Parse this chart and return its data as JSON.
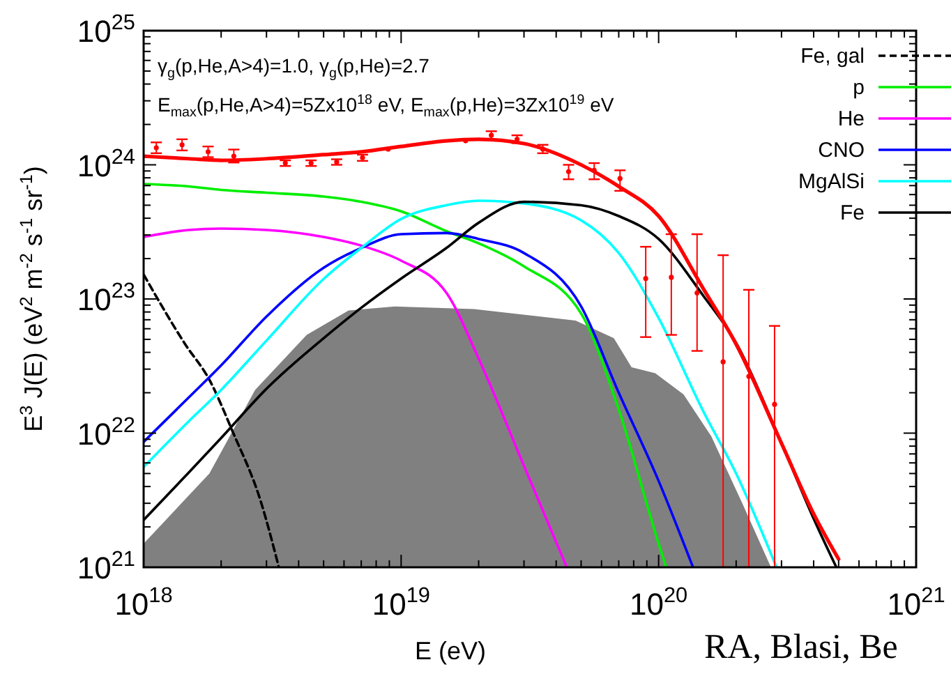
{
  "chart_data": {
    "type": "line",
    "xlabel": "E (eV)",
    "ylabel": "E$^{3}$ J(E) (eV$^{2}$ m$^{-2}$ s$^{-1}$ sr$^{-1}$)",
    "log": "xy",
    "legend": "top right",
    "xlim": [
      1e+18,
      1e+21
    ],
    "ylim": [
      1e+21,
      1e+25
    ],
    "xticks": [
      {
        "value": 1e+18,
        "label": "10$^{18}$"
      },
      {
        "value": 2e+18,
        "label": null
      },
      {
        "value": 3e+18,
        "label": null
      },
      {
        "value": 4e+18,
        "label": null
      },
      {
        "value": 5e+18,
        "label": null
      },
      {
        "value": 6e+18,
        "label": null
      },
      {
        "value": 7e+18,
        "label": null
      },
      {
        "value": 8e+18,
        "label": null
      },
      {
        "value": 9e+18,
        "label": null
      },
      {
        "value": 1e+19,
        "label": "10$^{19}$"
      },
      {
        "value": 2e+19,
        "label": null
      },
      {
        "value": 3e+19,
        "label": null
      },
      {
        "value": 4e+19,
        "label": null
      },
      {
        "value": 5e+19,
        "label": null
      },
      {
        "value": 6e+19,
        "label": null
      },
      {
        "value": 7e+19,
        "label": null
      },
      {
        "value": 8e+19,
        "label": null
      },
      {
        "value": 9e+19,
        "label": null
      },
      {
        "value": 1e+20,
        "label": "10$^{20}$"
      },
      {
        "value": 2e+20,
        "label": null
      },
      {
        "value": 3e+20,
        "label": null
      },
      {
        "value": 4e+20,
        "label": null
      },
      {
        "value": 5e+20,
        "label": null
      },
      {
        "value": 6e+20,
        "label": null
      },
      {
        "value": 7e+20,
        "label": null
      },
      {
        "value": 8e+20,
        "label": null
      },
      {
        "value": 9e+20,
        "label": null
      },
      {
        "value": 1e+21,
        "label": "10$^{21}$"
      }
    ],
    "yticks": [
      {
        "value": 1e+21,
        "label": "10$^{21}$"
      },
      {
        "value": 2e+21,
        "label": null
      },
      {
        "value": 3e+21,
        "label": null
      },
      {
        "value": 4e+21,
        "label": null
      },
      {
        "value": 5e+21,
        "label": null
      },
      {
        "value": 6e+21,
        "label": null
      },
      {
        "value": 7e+21,
        "label": null
      },
      {
        "value": 8e+21,
        "label": null
      },
      {
        "value": 9e+21,
        "label": null
      },
      {
        "value": 1e+22,
        "label": "10$^{22}$"
      },
      {
        "value": 2e+22,
        "label": null
      },
      {
        "value": 3e+22,
        "label": null
      },
      {
        "value": 4e+22,
        "label": null
      },
      {
        "value": 5e+22,
        "label": null
      },
      {
        "value": 6e+22,
        "label": null
      },
      {
        "value": 7e+22,
        "label": null
      },
      {
        "value": 8e+22,
        "label": null
      },
      {
        "value": 9e+22,
        "label": null
      },
      {
        "value": 1e+23,
        "label": "10$^{23}$"
      },
      {
        "value": 2e+23,
        "label": null
      },
      {
        "value": 3e+23,
        "label": null
      },
      {
        "value": 4e+23,
        "label": null
      },
      {
        "value": 5e+23,
        "label": null
      },
      {
        "value": 6e+23,
        "label": null
      },
      {
        "value": 7e+23,
        "label": null
      },
      {
        "value": 8e+23,
        "label": null
      },
      {
        "value": 9e+23,
        "label": null
      },
      {
        "value": 1e+24,
        "label": "10$^{24}$"
      },
      {
        "value": 2e+24,
        "label": null
      },
      {
        "value": 3e+24,
        "label": null
      },
      {
        "value": 4e+24,
        "label": null
      },
      {
        "value": 5e+24,
        "label": null
      },
      {
        "value": 6e+24,
        "label": null
      },
      {
        "value": 7e+24,
        "label": null
      },
      {
        "value": 8e+24,
        "label": null
      },
      {
        "value": 9e+24,
        "label": null
      },
      {
        "value": 1e+25,
        "label": "10$^{25}$"
      }
    ],
    "annotations": [
      "γ$_{g}$(p,He,A>4)=1.0, γ$_{g}$(p,He)=2.7",
      "E$_{max}$(p,He,A>4)=5Zx10$^{18}$ eV, E$_{max}$(p,He)=3Zx10$^{19}$ eV",
      "RA, Blasi, Be"
    ],
    "series": [
      {
        "type": "area",
        "color": "#808080",
        "x": [
          1e+18,
          1.8e+18,
          2.71e+18,
          4.3e+18,
          6.25e+18,
          9.45e+18,
          1.92e+19,
          4.76e+19,
          6.7e+19,
          7.85e+19,
          9.7e+19,
          1.25e+20,
          1.6e+20,
          2.13e+20,
          2.73e+20
        ],
        "values": [
          1.5e+21,
          5e+21,
          2.1e+22,
          5.4e+22,
          8.2e+22,
          8.8e+22,
          8.4e+22,
          6.9e+22,
          5.1e+22,
          3.1e+22,
          2.8e+22,
          1.94e+22,
          9.5e+21,
          2.9e+21,
          1e+21
        ]
      },
      {
        "name": "Fe, gal",
        "color": "#000000",
        "line_style": "dashed",
        "x": [
          1e+18,
          1.45e+18,
          1.8e+18,
          2.22e+18,
          2.85e+18,
          3.35e+18
        ],
        "values": [
          1.52e+23,
          4.6e+22,
          2.5e+22,
          1.02e+22,
          3.1e+21,
          1e+21
        ]
      },
      {
        "name": "p",
        "color": "#00ee00",
        "x": [
          1e+18,
          1.5e+18,
          2e+18,
          3e+18,
          5e+18,
          7e+18,
          1e+19,
          1.5e+19,
          2e+19,
          3e+19,
          5e+19,
          7e+19,
          1e+20,
          1.07e+20
        ],
        "values": [
          7.2e+23,
          6.9e+23,
          6.5e+23,
          6.2e+23,
          5.8e+23,
          5.3e+23,
          4.5e+23,
          3.2e+23,
          2.6e+23,
          1.75e+23,
          7.8e+22,
          1.5e+22,
          1.5e+21,
          1e+21
        ]
      },
      {
        "name": "He",
        "color": "#ff00ff",
        "x": [
          1e+18,
          1.5e+18,
          2e+18,
          3e+18,
          5e+18,
          7e+18,
          1e+19,
          1.5e+19,
          2e+19,
          3e+19,
          4.4e+19
        ],
        "values": [
          2.9e+23,
          3.27e+23,
          3.35e+23,
          3.27e+23,
          2.9e+23,
          2.5e+23,
          1.93e+23,
          1.11e+23,
          3.6e+22,
          5.7e+21,
          1e+21
        ]
      },
      {
        "name": "CNO",
        "color": "#0000ff",
        "x": [
          1e+18,
          1.5e+18,
          2e+18,
          3e+18,
          5e+18,
          7e+18,
          1e+19,
          1.5e+19,
          2e+19,
          3e+19,
          5e+19,
          7e+19,
          1e+20,
          1.36e+20
        ],
        "values": [
          8.6e+21,
          1.85e+22,
          3.2e+22,
          7.4e+22,
          1.71e+23,
          2.4e+23,
          3.04e+23,
          3.1e+23,
          2.8e+23,
          2.2e+23,
          8.8e+22,
          2e+22,
          4.4e+21,
          1e+21
        ]
      },
      {
        "name": "MgAlSi",
        "color": "#00ffff",
        "x": [
          1e+18,
          1.5e+18,
          2e+18,
          3e+18,
          5e+18,
          7e+18,
          1e+19,
          1.5e+19,
          2e+19,
          3e+19,
          5e+19,
          7e+19,
          1e+20,
          1.5e+20,
          2e+20,
          2.87e+20
        ],
        "values": [
          5.6e+21,
          1.23e+22,
          2.1e+22,
          4.9e+22,
          1.41e+23,
          2.4e+23,
          3.95e+23,
          5e+23,
          5.4e+23,
          5.15e+23,
          3.86e+23,
          2.2e+23,
          7.2e+22,
          1.42e+22,
          5e+21,
          1e+21
        ]
      },
      {
        "name": "Fe",
        "color": "#000000",
        "x": [
          1e+18,
          1.5e+18,
          2e+18,
          3e+18,
          5e+18,
          7e+18,
          1e+19,
          1.5e+19,
          2e+19,
          3e+19,
          5e+19,
          7e+19,
          1e+20,
          1.5e+20,
          2e+20,
          3e+20,
          4e+20,
          4.9e+20
        ],
        "values": [
          2.25e+21,
          5.1e+21,
          9.2e+21,
          2.14e+22,
          5.1e+22,
          8.6e+22,
          1.42e+23,
          2.4e+23,
          3.7e+23,
          5.3e+23,
          5e+23,
          4.15e+23,
          2.8e+23,
          1.04e+23,
          4.7e+22,
          8.4e+21,
          2.3e+21,
          1e+21
        ]
      },
      {
        "color": "#ff0000",
        "x": [
          1e+18,
          1.5e+18,
          2e+18,
          3e+18,
          5e+18,
          7e+18,
          1e+19,
          1.5e+19,
          2e+19,
          3e+19,
          5e+19,
          7e+19,
          1e+20,
          1.5e+20,
          2e+20,
          3e+20,
          4e+20,
          5e+20
        ],
        "values": [
          1.16e+24,
          1.11e+24,
          1.08e+24,
          1.11e+24,
          1.19e+24,
          1.25e+24,
          1.37e+24,
          1.51e+24,
          1.55e+24,
          1.44e+24,
          1e+24,
          6.9e+23,
          4.15e+23,
          1.17e+23,
          4.6e+22,
          8.4e+21,
          2.5e+21,
          1.15e+21
        ]
      },
      {
        "type": "scatter",
        "marker": "circle",
        "color": "#ff0000",
        "x": [
          1.12e+18,
          1.41e+18,
          1.78e+18,
          2.24e+18,
          3.55e+18,
          4.47e+18,
          5.62e+18,
          7.08e+18,
          8.91e+18,
          1.78e+19,
          2.24e+19,
          2.82e+19,
          3.55e+19,
          4.47e+19,
          5.62e+19,
          7.08e+19,
          8.91e+19,
          1.12e+20,
          1.41e+20,
          1.78e+20,
          2.24e+20,
          2.82e+20
        ],
        "values": [
          1.34e+24,
          1.41e+24,
          1.25e+24,
          1.16e+24,
          1.03e+24,
          1.03e+24,
          1.05e+24,
          1.13e+24,
          1.31e+24,
          1.51e+24,
          1.66e+24,
          1.55e+24,
          1.31e+24,
          8.9e+23,
          9.1e+23,
          7.9e+23,
          1.42e+23,
          1.45e+23,
          1.11e+23,
          3.4e+22,
          2.65e+22,
          1.64e+22
        ],
        "errors": [
          [
            1.22e+24,
            1.47e+24
          ],
          [
            1.28e+24,
            1.55e+24
          ],
          [
            1.14e+24,
            1.37e+24
          ],
          [
            1.04e+24,
            1.3e+24
          ],
          [
            9.8e+23,
            1.08e+24
          ],
          [
            9.8e+23,
            1.08e+24
          ],
          [
            1e+24,
            1.1e+24
          ],
          [
            1.07e+24,
            1.19e+24
          ],
          null,
          null,
          [
            1.55e+24,
            1.78e+24
          ],
          [
            1.45e+24,
            1.66e+24
          ],
          [
            1.22e+24,
            1.41e+24
          ],
          [
            7.8e+23,
            1e+24
          ],
          [
            7.8e+23,
            1.03e+24
          ],
          [
            6.4e+23,
            9.1e+23
          ],
          [
            5.2e+22,
            2.45e+23
          ],
          [
            5.4e+22,
            3.04e+23
          ],
          [
            4.1e+22,
            3.04e+23
          ],
          [
            1e+21,
            2.12e+23
          ],
          [
            1e+21,
            1.17e+23
          ],
          [
            1e+21,
            6.3e+22
          ]
        ]
      }
    ]
  }
}
